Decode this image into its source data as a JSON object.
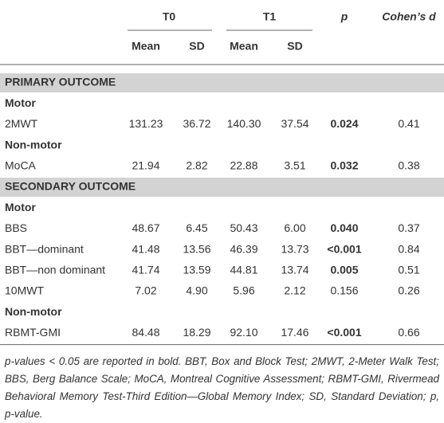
{
  "table": {
    "group_headers": [
      "T0",
      "T1",
      "p",
      "Cohen’s d"
    ],
    "sub_headers": [
      "Mean",
      "SD",
      "Mean",
      "SD"
    ],
    "sections": [
      {
        "title": "PRIMARY OUTCOME",
        "groups": [
          {
            "title": "Motor",
            "rows": [
              {
                "cells": [
                  "2MWT",
                  "131.23",
                  "36.72",
                  "140.30",
                  "37.54",
                  "0.024",
                  "0.41"
                ],
                "p_bold": true
              }
            ]
          },
          {
            "title": "Non-motor",
            "rows": [
              {
                "cells": [
                  "MoCA",
                  "21.94",
                  "2.82",
                  "22.88",
                  "3.51",
                  "0.032",
                  "0.38"
                ],
                "p_bold": true
              }
            ]
          }
        ]
      },
      {
        "title": "SECONDARY OUTCOME",
        "groups": [
          {
            "title": "Motor",
            "rows": [
              {
                "cells": [
                  "BBS",
                  "48.67",
                  "6.45",
                  "50.43",
                  "6.00",
                  "0.040",
                  "0.37"
                ],
                "p_bold": true
              },
              {
                "cells": [
                  "BBT—dominant",
                  "41.48",
                  "13.56",
                  "46.39",
                  "13.73",
                  "<0.001",
                  "0.84"
                ],
                "p_bold": true
              },
              {
                "cells": [
                  "BBT—non dominant",
                  "41.74",
                  "13.59",
                  "44.81",
                  "13.74",
                  "0.005",
                  "0.51"
                ],
                "p_bold": true
              },
              {
                "cells": [
                  "10MWT",
                  "7.02",
                  "4.90",
                  "5.96",
                  "2.12",
                  "0.156",
                  "0.26"
                ],
                "p_bold": false
              }
            ]
          },
          {
            "title": "Non-motor",
            "rows": [
              {
                "cells": [
                  "RBMT-GMI",
                  "84.48",
                  "18.29",
                  "92.10",
                  "17.46",
                  "<0.001",
                  "0.66"
                ],
                "p_bold": true
              }
            ]
          }
        ]
      }
    ]
  },
  "footnote": "p-values < 0.05 are reported in bold. BBT, Box and Block Test; 2MWT, 2-Meter Walk Test; BBS, Berg Balance Scale; MoCA, Montreal Cognitive Assessment; RBMT-GMI, Rivermead Behavioral Memory Test-Third Edition—Global Memory Index; SD, Standard Deviation; p, p-value."
}
